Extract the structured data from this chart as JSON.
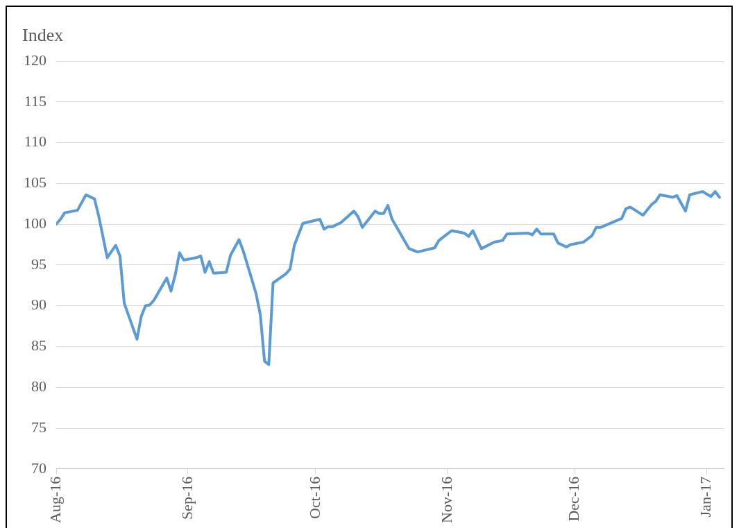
{
  "chart_data": {
    "type": "line",
    "ylabel": "Index",
    "x": [
      "2016-08-01",
      "2016-08-02",
      "2016-08-03",
      "2016-08-06",
      "2016-08-08",
      "2016-08-10",
      "2016-08-11",
      "2016-08-13",
      "2016-08-15",
      "2016-08-16",
      "2016-08-17",
      "2016-08-20",
      "2016-08-21",
      "2016-08-22",
      "2016-08-23",
      "2016-08-24",
      "2016-08-27",
      "2016-08-28",
      "2016-08-29",
      "2016-08-30",
      "2016-08-31",
      "2016-09-03",
      "2016-09-04",
      "2016-09-05",
      "2016-09-06",
      "2016-09-07",
      "2016-09-10",
      "2016-09-11",
      "2016-09-13",
      "2016-09-14",
      "2016-09-17",
      "2016-09-18",
      "2016-09-19",
      "2016-09-20",
      "2016-09-21",
      "2016-09-24",
      "2016-09-25",
      "2016-09-26",
      "2016-09-28",
      "2016-10-02",
      "2016-10-03",
      "2016-10-04",
      "2016-10-05",
      "2016-10-07",
      "2016-10-10",
      "2016-10-11",
      "2016-10-12",
      "2016-10-15",
      "2016-10-16",
      "2016-10-17",
      "2016-10-18",
      "2016-10-19",
      "2016-10-23",
      "2016-10-25",
      "2016-10-29",
      "2016-10-30",
      "2016-10-31",
      "2016-11-02",
      "2016-11-05",
      "2016-11-06",
      "2016-11-07",
      "2016-11-09",
      "2016-11-12",
      "2016-11-14",
      "2016-11-15",
      "2016-11-20",
      "2016-11-21",
      "2016-11-22",
      "2016-11-23",
      "2016-11-26",
      "2016-11-27",
      "2016-11-29",
      "2016-11-30",
      "2016-12-03",
      "2016-12-05",
      "2016-12-06",
      "2016-12-07",
      "2016-12-12",
      "2016-12-13",
      "2016-12-14",
      "2016-12-17",
      "2016-12-19",
      "2016-12-20",
      "2016-12-21",
      "2016-12-24",
      "2016-12-25",
      "2016-12-27",
      "2016-12-28",
      "2016-12-31",
      "2017-01-02",
      "2017-01-03",
      "2017-01-04"
    ],
    "series": [
      {
        "color": "#5b9bd5",
        "values": [
          100,
          100.6,
          101.4,
          101.7,
          103.6,
          103.1,
          101,
          95.9,
          97.4,
          96.1,
          90.3,
          85.9,
          88.7,
          90,
          90.1,
          90.7,
          93.4,
          91.8,
          93.8,
          96.5,
          95.6,
          95.9,
          96.1,
          94.1,
          95.4,
          94,
          94.1,
          96.2,
          98.1,
          96.7,
          91.5,
          88.9,
          83.2,
          82.8,
          92.8,
          93.9,
          94.5,
          97.4,
          100.1,
          100.6,
          99.4,
          99.7,
          99.7,
          100.2,
          101.6,
          100.9,
          99.6,
          101.6,
          101.3,
          101.3,
          102.3,
          100.6,
          97,
          96.6,
          97.1,
          98,
          98.4,
          99.2,
          98.9,
          98.5,
          99.2,
          97,
          97.8,
          98,
          98.8,
          98.9,
          98.7,
          99.4,
          98.8,
          98.8,
          97.7,
          97.2,
          97.5,
          97.8,
          98.6,
          99.6,
          99.6,
          100.7,
          101.9,
          102.1,
          101.1,
          102.4,
          102.8,
          103.6,
          103.3,
          103.5,
          101.6,
          103.6,
          104,
          103.4,
          104,
          103.3
        ]
      }
    ],
    "xlim": [
      "2016-08-01",
      "2017-01-05"
    ],
    "xticks": [
      {
        "value": "2016-08-01",
        "label": "Aug-16"
      },
      {
        "value": "2016-09-01",
        "label": "Sep-16"
      },
      {
        "value": "2016-10-01",
        "label": "Oct-16"
      },
      {
        "value": "2016-11-01",
        "label": "Nov-16"
      },
      {
        "value": "2016-12-01",
        "label": "Dec-16"
      },
      {
        "value": "2017-01-01",
        "label": "Jan-17"
      }
    ],
    "ylim": [
      70,
      120
    ],
    "yticks": [
      70,
      75,
      80,
      85,
      90,
      95,
      100,
      105,
      110,
      115,
      120
    ],
    "grid": "y",
    "legend": false,
    "marker": "none",
    "line_style": "solid"
  }
}
